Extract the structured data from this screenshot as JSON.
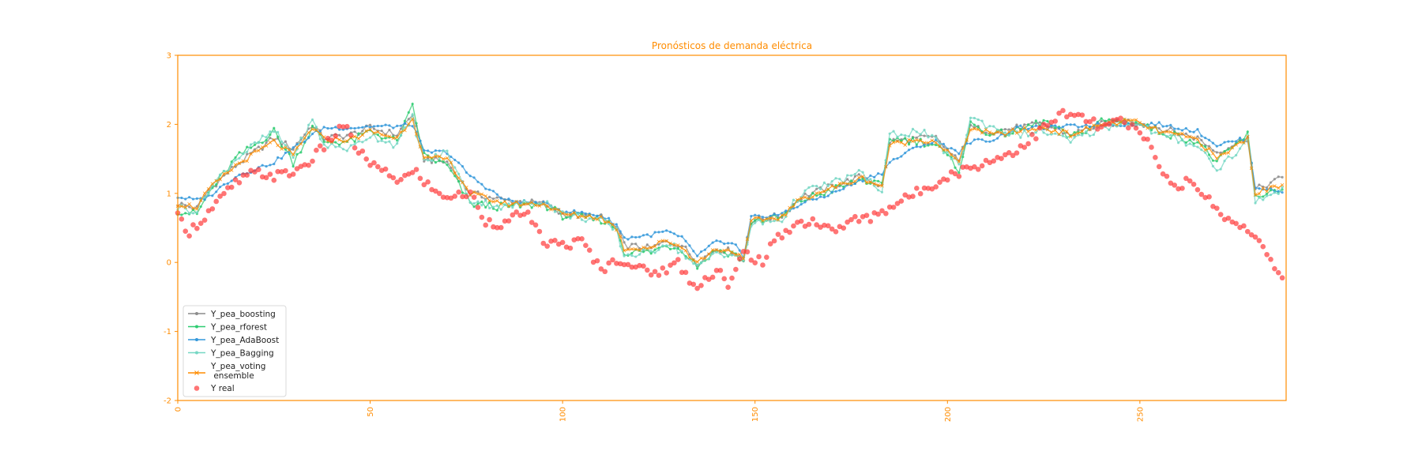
{
  "chart_data": {
    "type": "line",
    "title": "Pronósticos de demanda eléctrica",
    "xlabel": "",
    "ylabel": "",
    "xlim": [
      0,
      288
    ],
    "ylim": [
      -2,
      3
    ],
    "x_ticks": [
      0,
      50,
      100,
      150,
      200,
      250
    ],
    "y_ticks": [
      -2,
      -1,
      0,
      1,
      2,
      3
    ],
    "grid": false,
    "legend_position": "lower-left",
    "accent_color": "#ff8c00",
    "n_points": 288,
    "series": [
      {
        "name": "Y_pea_boosting",
        "color": "#8c8c8c",
        "marker": "dot",
        "keypoints": [
          [
            0,
            0.85
          ],
          [
            5,
            0.78
          ],
          [
            8,
            1.05
          ],
          [
            15,
            1.4
          ],
          [
            25,
            1.8
          ],
          [
            30,
            1.65
          ],
          [
            35,
            2.0
          ],
          [
            38,
            1.8
          ],
          [
            45,
            1.85
          ],
          [
            50,
            1.95
          ],
          [
            57,
            1.85
          ],
          [
            61,
            2.15
          ],
          [
            64,
            1.5
          ],
          [
            70,
            1.45
          ],
          [
            76,
            1.0
          ],
          [
            85,
            0.9
          ],
          [
            95,
            0.85
          ],
          [
            100,
            0.7
          ],
          [
            110,
            0.65
          ],
          [
            114,
            0.5
          ],
          [
            116,
            0.25
          ],
          [
            123,
            0.2
          ],
          [
            127,
            0.3
          ],
          [
            131,
            0.25
          ],
          [
            135,
            0.0
          ],
          [
            140,
            0.2
          ],
          [
            145,
            0.15
          ],
          [
            147,
            0.02
          ],
          [
            149,
            0.6
          ],
          [
            157,
            0.68
          ],
          [
            162,
            0.95
          ],
          [
            170,
            1.1
          ],
          [
            178,
            1.25
          ],
          [
            183,
            1.1
          ],
          [
            185,
            1.75
          ],
          [
            193,
            1.8
          ],
          [
            197,
            1.8
          ],
          [
            203,
            1.45
          ],
          [
            206,
            1.95
          ],
          [
            212,
            1.9
          ],
          [
            218,
            1.95
          ],
          [
            225,
            2.0
          ],
          [
            232,
            1.85
          ],
          [
            240,
            2.0
          ],
          [
            248,
            2.05
          ],
          [
            255,
            1.95
          ],
          [
            265,
            1.8
          ],
          [
            270,
            1.6
          ],
          [
            278,
            1.8
          ],
          [
            280,
            1.05
          ],
          [
            288,
            1.25
          ]
        ]
      },
      {
        "name": "Y_pea_rforest",
        "color": "#2ecc71",
        "marker": "dot",
        "keypoints": [
          [
            0,
            0.75
          ],
          [
            5,
            0.7
          ],
          [
            8,
            1.0
          ],
          [
            15,
            1.5
          ],
          [
            25,
            1.9
          ],
          [
            30,
            1.45
          ],
          [
            35,
            1.95
          ],
          [
            38,
            1.75
          ],
          [
            45,
            1.75
          ],
          [
            50,
            1.9
          ],
          [
            57,
            1.75
          ],
          [
            61,
            2.25
          ],
          [
            64,
            1.55
          ],
          [
            70,
            1.4
          ],
          [
            76,
            0.85
          ],
          [
            85,
            0.8
          ],
          [
            95,
            0.85
          ],
          [
            100,
            0.68
          ],
          [
            110,
            0.62
          ],
          [
            114,
            0.5
          ],
          [
            116,
            0.15
          ],
          [
            123,
            0.15
          ],
          [
            127,
            0.25
          ],
          [
            131,
            0.2
          ],
          [
            135,
            -0.05
          ],
          [
            140,
            0.18
          ],
          [
            145,
            0.12
          ],
          [
            147,
            0.0
          ],
          [
            149,
            0.6
          ],
          [
            157,
            0.65
          ],
          [
            162,
            0.9
          ],
          [
            170,
            1.05
          ],
          [
            178,
            1.2
          ],
          [
            183,
            1.1
          ],
          [
            185,
            1.8
          ],
          [
            193,
            1.75
          ],
          [
            197,
            1.7
          ],
          [
            203,
            1.35
          ],
          [
            206,
            2.0
          ],
          [
            212,
            1.85
          ],
          [
            218,
            1.9
          ],
          [
            225,
            2.05
          ],
          [
            232,
            1.8
          ],
          [
            240,
            2.05
          ],
          [
            248,
            2.05
          ],
          [
            255,
            1.9
          ],
          [
            265,
            1.75
          ],
          [
            270,
            1.45
          ],
          [
            278,
            1.85
          ],
          [
            280,
            0.95
          ],
          [
            288,
            1.1
          ]
        ]
      },
      {
        "name": "Y_pea_AdaBoost",
        "color": "#3498db",
        "marker": "dot",
        "keypoints": [
          [
            0,
            0.95
          ],
          [
            5,
            0.9
          ],
          [
            8,
            0.95
          ],
          [
            15,
            1.25
          ],
          [
            25,
            1.45
          ],
          [
            30,
            1.65
          ],
          [
            35,
            1.85
          ],
          [
            38,
            1.95
          ],
          [
            45,
            1.95
          ],
          [
            50,
            1.97
          ],
          [
            57,
            1.97
          ],
          [
            61,
            2.0
          ],
          [
            64,
            1.6
          ],
          [
            70,
            1.6
          ],
          [
            76,
            1.25
          ],
          [
            85,
            0.9
          ],
          [
            95,
            0.85
          ],
          [
            100,
            0.75
          ],
          [
            110,
            0.68
          ],
          [
            114,
            0.55
          ],
          [
            116,
            0.35
          ],
          [
            123,
            0.4
          ],
          [
            127,
            0.45
          ],
          [
            131,
            0.35
          ],
          [
            135,
            0.1
          ],
          [
            140,
            0.3
          ],
          [
            145,
            0.25
          ],
          [
            147,
            0.05
          ],
          [
            149,
            0.65
          ],
          [
            157,
            0.7
          ],
          [
            162,
            0.85
          ],
          [
            170,
            1.0
          ],
          [
            178,
            1.2
          ],
          [
            183,
            1.3
          ],
          [
            185,
            1.45
          ],
          [
            193,
            1.7
          ],
          [
            197,
            1.75
          ],
          [
            203,
            1.6
          ],
          [
            206,
            1.75
          ],
          [
            212,
            1.78
          ],
          [
            218,
            1.95
          ],
          [
            225,
            1.95
          ],
          [
            232,
            1.97
          ],
          [
            240,
            2.0
          ],
          [
            248,
            2.0
          ],
          [
            255,
            2.0
          ],
          [
            265,
            1.9
          ],
          [
            270,
            1.7
          ],
          [
            278,
            1.8
          ],
          [
            280,
            1.1
          ],
          [
            288,
            1.0
          ]
        ]
      },
      {
        "name": "Y_pea_Bagging",
        "color": "#76d7c4",
        "marker": "dot",
        "keypoints": [
          [
            0,
            0.8
          ],
          [
            5,
            0.75
          ],
          [
            8,
            1.05
          ],
          [
            15,
            1.5
          ],
          [
            25,
            1.9
          ],
          [
            30,
            1.55
          ],
          [
            35,
            2.05
          ],
          [
            38,
            1.7
          ],
          [
            45,
            1.65
          ],
          [
            50,
            1.85
          ],
          [
            57,
            1.7
          ],
          [
            61,
            2.1
          ],
          [
            64,
            1.45
          ],
          [
            70,
            1.6
          ],
          [
            76,
            0.9
          ],
          [
            85,
            0.8
          ],
          [
            95,
            0.9
          ],
          [
            100,
            0.7
          ],
          [
            110,
            0.6
          ],
          [
            114,
            0.45
          ],
          [
            116,
            0.1
          ],
          [
            123,
            0.15
          ],
          [
            127,
            0.3
          ],
          [
            131,
            0.15
          ],
          [
            135,
            -0.08
          ],
          [
            140,
            0.15
          ],
          [
            145,
            0.1
          ],
          [
            147,
            0.0
          ],
          [
            149,
            0.55
          ],
          [
            157,
            0.62
          ],
          [
            162,
            1.0
          ],
          [
            170,
            1.15
          ],
          [
            178,
            1.3
          ],
          [
            183,
            1.0
          ],
          [
            185,
            1.85
          ],
          [
            193,
            1.9
          ],
          [
            197,
            1.75
          ],
          [
            203,
            1.4
          ],
          [
            206,
            2.1
          ],
          [
            212,
            1.95
          ],
          [
            218,
            1.85
          ],
          [
            225,
            1.9
          ],
          [
            232,
            1.75
          ],
          [
            240,
            1.95
          ],
          [
            248,
            2.05
          ],
          [
            255,
            1.85
          ],
          [
            265,
            1.7
          ],
          [
            270,
            1.35
          ],
          [
            278,
            1.75
          ],
          [
            280,
            0.9
          ],
          [
            288,
            1.05
          ]
        ]
      },
      {
        "name": "Y_pea_voting\n ensemble",
        "color": "#ff8c00",
        "marker": "x",
        "keypoints": [
          [
            0,
            0.85
          ],
          [
            5,
            0.8
          ],
          [
            8,
            1.05
          ],
          [
            15,
            1.4
          ],
          [
            25,
            1.75
          ],
          [
            30,
            1.55
          ],
          [
            35,
            1.95
          ],
          [
            38,
            1.78
          ],
          [
            45,
            1.78
          ],
          [
            50,
            1.9
          ],
          [
            57,
            1.8
          ],
          [
            61,
            2.1
          ],
          [
            64,
            1.5
          ],
          [
            70,
            1.5
          ],
          [
            76,
            1.0
          ],
          [
            85,
            0.85
          ],
          [
            95,
            0.85
          ],
          [
            100,
            0.7
          ],
          [
            110,
            0.65
          ],
          [
            114,
            0.5
          ],
          [
            116,
            0.2
          ],
          [
            123,
            0.22
          ],
          [
            127,
            0.32
          ],
          [
            131,
            0.22
          ],
          [
            135,
            0.0
          ],
          [
            140,
            0.2
          ],
          [
            145,
            0.15
          ],
          [
            147,
            0.02
          ],
          [
            149,
            0.6
          ],
          [
            157,
            0.66
          ],
          [
            162,
            0.92
          ],
          [
            170,
            1.08
          ],
          [
            178,
            1.22
          ],
          [
            183,
            1.1
          ],
          [
            185,
            1.7
          ],
          [
            193,
            1.78
          ],
          [
            197,
            1.75
          ],
          [
            203,
            1.45
          ],
          [
            206,
            1.95
          ],
          [
            212,
            1.85
          ],
          [
            218,
            1.9
          ],
          [
            225,
            1.95
          ],
          [
            232,
            1.85
          ],
          [
            240,
            2.0
          ],
          [
            248,
            2.05
          ],
          [
            255,
            1.9
          ],
          [
            265,
            1.78
          ],
          [
            270,
            1.5
          ],
          [
            278,
            1.8
          ],
          [
            280,
            1.0
          ],
          [
            288,
            1.15
          ]
        ]
      },
      {
        "name": "Y real",
        "color": "#ff3b3b",
        "marker": "circle",
        "keypoints": [
          [
            0,
            0.65
          ],
          [
            3,
            0.45
          ],
          [
            6,
            0.6
          ],
          [
            10,
            0.85
          ],
          [
            15,
            1.15
          ],
          [
            20,
            1.3
          ],
          [
            25,
            1.25
          ],
          [
            30,
            1.3
          ],
          [
            35,
            1.5
          ],
          [
            40,
            1.8
          ],
          [
            43,
            2.0
          ],
          [
            47,
            1.6
          ],
          [
            52,
            1.35
          ],
          [
            57,
            1.2
          ],
          [
            62,
            1.3
          ],
          [
            67,
            1.0
          ],
          [
            72,
            0.95
          ],
          [
            76,
            1.0
          ],
          [
            80,
            0.6
          ],
          [
            85,
            0.55
          ],
          [
            90,
            0.75
          ],
          [
            95,
            0.3
          ],
          [
            100,
            0.25
          ],
          [
            105,
            0.3
          ],
          [
            110,
            -0.1
          ],
          [
            115,
            0.05
          ],
          [
            120,
            -0.1
          ],
          [
            125,
            -0.15
          ],
          [
            130,
            0.0
          ],
          [
            134,
            -0.35
          ],
          [
            138,
            -0.2
          ],
          [
            141,
            -0.1
          ],
          [
            143,
            -0.4
          ],
          [
            147,
            0.15
          ],
          [
            152,
            0.0
          ],
          [
            155,
            0.3
          ],
          [
            160,
            0.55
          ],
          [
            165,
            0.6
          ],
          [
            170,
            0.45
          ],
          [
            175,
            0.6
          ],
          [
            180,
            0.65
          ],
          [
            185,
            0.8
          ],
          [
            190,
            0.95
          ],
          [
            195,
            1.1
          ],
          [
            200,
            1.25
          ],
          [
            205,
            1.35
          ],
          [
            210,
            1.45
          ],
          [
            215,
            1.55
          ],
          [
            220,
            1.7
          ],
          [
            225,
            1.95
          ],
          [
            230,
            2.15
          ],
          [
            235,
            2.1
          ],
          [
            240,
            1.95
          ],
          [
            245,
            2.05
          ],
          [
            248,
            1.95
          ],
          [
            252,
            1.75
          ],
          [
            255,
            1.45
          ],
          [
            258,
            1.1
          ],
          [
            262,
            1.15
          ],
          [
            266,
            1.05
          ],
          [
            270,
            0.75
          ],
          [
            274,
            0.6
          ],
          [
            278,
            0.5
          ],
          [
            282,
            0.2
          ],
          [
            286,
            -0.2
          ],
          [
            288,
            -0.15
          ]
        ]
      }
    ]
  }
}
